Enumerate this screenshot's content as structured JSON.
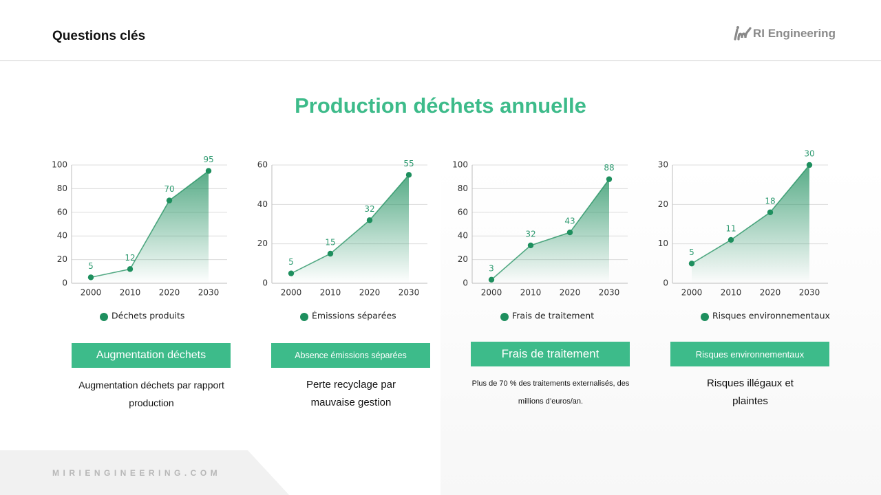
{
  "header": {
    "title": "Questions clés",
    "logo": "RI Engineering"
  },
  "heading": "Production déchets annuelle",
  "chart_data": [
    {
      "type": "line",
      "categories": [
        "2000",
        "2010",
        "2020",
        "2030"
      ],
      "series": [
        {
          "name": "Déchets produits",
          "color": "#1e8f5e",
          "values": [
            5,
            12,
            70,
            95
          ]
        }
      ],
      "ylim": [
        0,
        100
      ],
      "yticks": [
        0,
        20,
        40,
        60,
        80,
        100
      ],
      "grid": true,
      "area": true
    },
    {
      "type": "line",
      "categories": [
        "2000",
        "2010",
        "2020",
        "2030"
      ],
      "series": [
        {
          "name": "Émissions séparées",
          "color": "#1e8f5e",
          "values": [
            5,
            15,
            32,
            55
          ]
        }
      ],
      "ylim": [
        0,
        60
      ],
      "yticks": [
        0,
        20,
        40,
        60
      ],
      "grid": true,
      "area": true
    },
    {
      "type": "line",
      "categories": [
        "2000",
        "2010",
        "2020",
        "2030"
      ],
      "series": [
        {
          "name": "Frais de traitement",
          "color": "#1e8f5e",
          "values": [
            3,
            32,
            43,
            88
          ]
        }
      ],
      "ylim": [
        0,
        100
      ],
      "yticks": [
        0,
        20,
        40,
        60,
        80,
        100
      ],
      "grid": true,
      "area": true
    },
    {
      "type": "line",
      "categories": [
        "2000",
        "2010",
        "2020",
        "2030"
      ],
      "series": [
        {
          "name": "Risques environnementaux",
          "color": "#1e8f5e",
          "values": [
            5,
            11,
            18,
            30
          ]
        }
      ],
      "ylim": [
        0,
        30
      ],
      "yticks": [
        0,
        10,
        20,
        30
      ],
      "grid": true,
      "area": true
    }
  ],
  "cards": [
    {
      "label": "Augmentation déchets",
      "text": "Augmentation déchets par rapport production"
    },
    {
      "label": "Absence émissions séparées",
      "text": "Perte recyclage par mauvaise gestion"
    },
    {
      "label": "Frais de traitement",
      "text": "Plus de 70 % des traitements externalisés, des millions d’euros/an."
    },
    {
      "label": "Risques environnementaux",
      "text": "Risques illégaux et plaintes"
    }
  ],
  "footer": "MIRIENGINEERING.COM"
}
